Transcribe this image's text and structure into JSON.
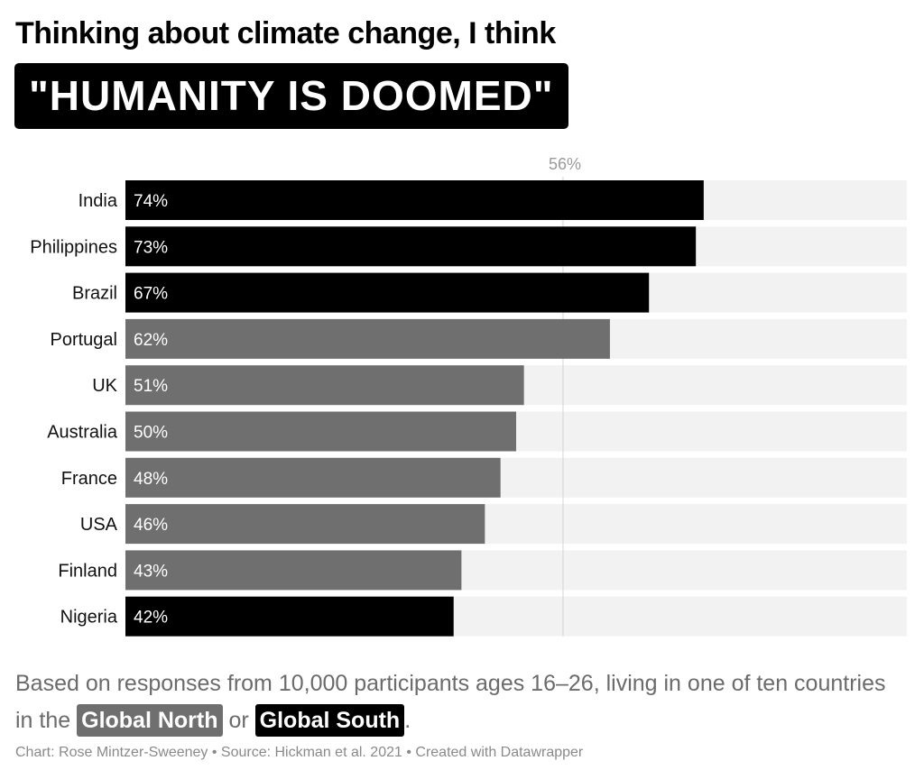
{
  "header": {
    "title": "Thinking about climate change, I think",
    "headline": "\"HUMANITY IS DOOMED\""
  },
  "subtitle": {
    "text_before": "Based on responses from 10,000 participants ages 16–26, living in one of ten countries in the",
    "tag_north": "Global North",
    "text_or": "or",
    "tag_south": "Global South",
    "text_after": "."
  },
  "footer": {
    "credit": "Chart: Rose Mintzer-Sweeney • Source: Hickman et al. 2021 • Created with Datawrapper"
  },
  "colors": {
    "global_south": "#000000",
    "global_north": "#6f6f6f",
    "track": "#f2f2f2",
    "reference_line": "#d4d4d4",
    "reference_label": "#9a9a9a"
  },
  "chart_data": {
    "type": "bar",
    "orientation": "horizontal",
    "categories": [
      "India",
      "Philippines",
      "Brazil",
      "Portugal",
      "UK",
      "Australia",
      "France",
      "USA",
      "Finland",
      "Nigeria"
    ],
    "values": [
      74,
      73,
      67,
      62,
      51,
      50,
      48,
      46,
      43,
      42
    ],
    "labels": [
      "74%",
      "73%",
      "67%",
      "62%",
      "51%",
      "50%",
      "48%",
      "46%",
      "43%",
      "42%"
    ],
    "groups": [
      "Global South",
      "Global South",
      "Global South",
      "Global North",
      "Global North",
      "Global North",
      "Global North",
      "Global North",
      "Global North",
      "Global South"
    ],
    "xlim": [
      0,
      100
    ],
    "reference_line": {
      "value": 56,
      "label": "56%"
    },
    "grid": false
  }
}
